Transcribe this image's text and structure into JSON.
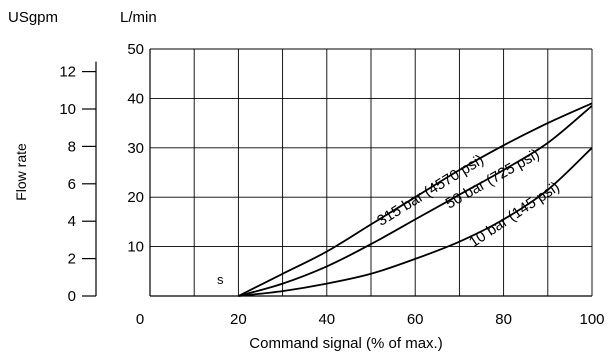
{
  "chart_data": {
    "type": "line",
    "title": "",
    "xlabel": "Command signal (% of max.)",
    "ylabel": "Flow rate",
    "x_ticks": [
      0,
      20,
      40,
      60,
      80,
      100
    ],
    "y_unit_primary": "L/min",
    "y_unit_secondary": "USgpm",
    "y_ticks_primary": [
      10,
      20,
      30,
      40,
      50
    ],
    "y_ticks_secondary": [
      0,
      2,
      4,
      6,
      8,
      10,
      12
    ],
    "xlim": [
      0,
      100
    ],
    "ylim": [
      0,
      50
    ],
    "grid": true,
    "marker_label": "s",
    "series": [
      {
        "name": "315 bar (4570 psi)",
        "x": [
          20,
          30,
          40,
          50,
          60,
          70,
          80,
          90,
          100
        ],
        "y": [
          0,
          4.5,
          9,
          14.5,
          20,
          25.5,
          30.5,
          35,
          39
        ]
      },
      {
        "name": "50 bar (725 psi)",
        "x": [
          20,
          30,
          40,
          50,
          60,
          70,
          80,
          90,
          100
        ],
        "y": [
          0,
          2.5,
          6,
          10.5,
          15.5,
          20.5,
          25.5,
          31,
          38.5
        ]
      },
      {
        "name": "10 bar (145 psi)",
        "x": [
          20,
          30,
          40,
          50,
          60,
          70,
          80,
          90,
          100
        ],
        "y": [
          0,
          1,
          2.5,
          4.5,
          7.5,
          11,
          15.5,
          21.5,
          30
        ]
      }
    ]
  }
}
